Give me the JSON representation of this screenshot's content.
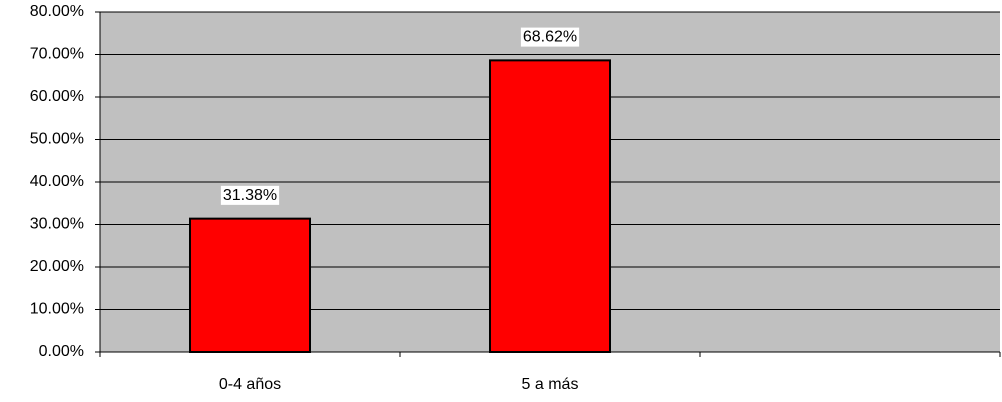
{
  "chart_data": {
    "type": "bar",
    "categories": [
      "0-4 años",
      "5 a más",
      null
    ],
    "values": [
      31.38,
      68.62,
      null
    ],
    "value_labels": [
      "31.38%",
      "68.62%",
      null
    ],
    "color": "#ff0000",
    "ylim": [
      0,
      80
    ],
    "yticks": [
      {
        "value": 0,
        "label": "0.00%"
      },
      {
        "value": 10,
        "label": "10.00%"
      },
      {
        "value": 20,
        "label": "20.00%"
      },
      {
        "value": 30,
        "label": "30.00%"
      },
      {
        "value": 40,
        "label": "40.00%"
      },
      {
        "value": 50,
        "label": "50.00%"
      },
      {
        "value": 60,
        "label": "60.00%"
      },
      {
        "value": 70,
        "label": "70.00%"
      },
      {
        "value": 80,
        "label": "80.00%"
      }
    ],
    "grid": true
  }
}
